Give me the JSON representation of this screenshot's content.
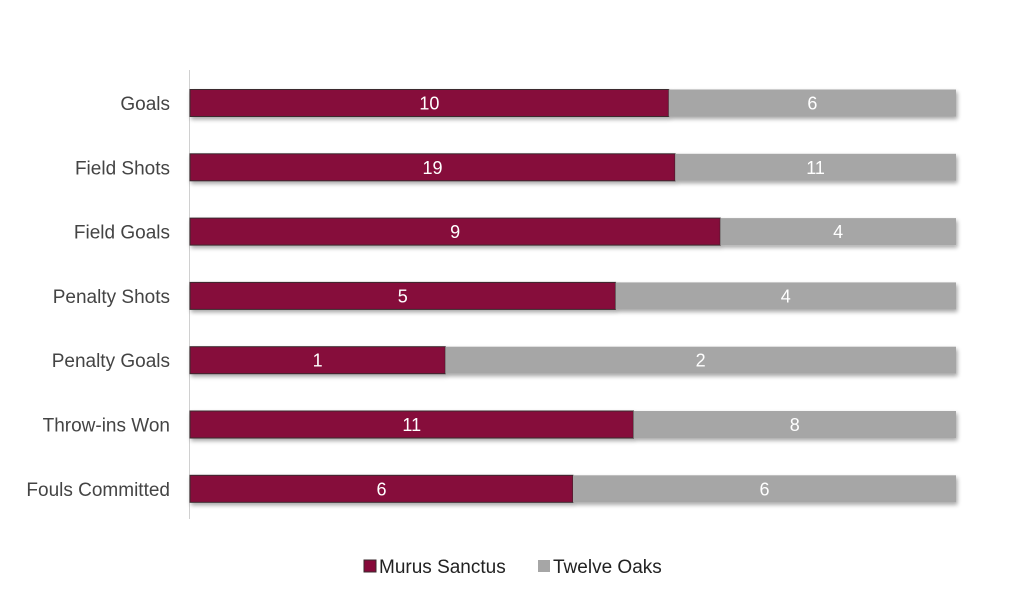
{
  "chart_data": {
    "type": "bar",
    "orientation": "horizontal",
    "stacking": "percent",
    "categories": [
      "Goals",
      "Field Shots",
      "Field Goals",
      "Penalty Shots",
      "Penalty Goals",
      "Throw-ins Won",
      "Fouls Committed"
    ],
    "series": [
      {
        "name": "Murus Sanctus",
        "values": [
          10,
          19,
          9,
          5,
          1,
          11,
          6
        ],
        "color": "#86093a"
      },
      {
        "name": "Twelve Oaks",
        "values": [
          6,
          11,
          4,
          4,
          2,
          8,
          6
        ],
        "color": "#a6a6a6"
      }
    ],
    "legend_position": "bottom",
    "grid": false,
    "data_labels": true
  }
}
